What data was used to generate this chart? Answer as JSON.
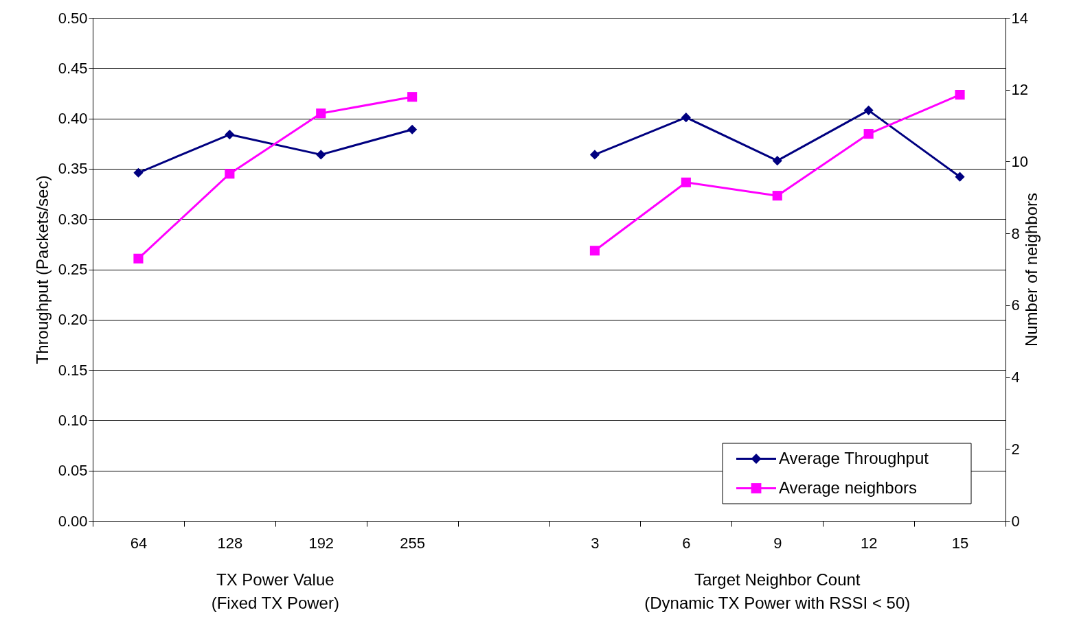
{
  "chart_data": {
    "type": "line",
    "categories": [
      "64",
      "128",
      "192",
      "255",
      null,
      "3",
      "6",
      "9",
      "12",
      "15"
    ],
    "xlabel": "TX Power Value\n(Fixed TX Power)",
    "annotations": [
      "Target Neighbor Count\n(Dynamic TX Power with RSSI < 50)"
    ],
    "ylabel": "Throughput (Packets/sec)",
    "y2label": "Number of neighbors",
    "ylim": [
      0,
      0.5
    ],
    "yticks": [
      {
        "value": 0,
        "label": "0.00"
      },
      {
        "value": 0.05,
        "label": "0.05"
      },
      {
        "value": 0.1,
        "label": "0.10"
      },
      {
        "value": 0.15,
        "label": "0.15"
      },
      {
        "value": 0.2,
        "label": "0.20"
      },
      {
        "value": 0.25,
        "label": "0.25"
      },
      {
        "value": 0.3,
        "label": "0.30"
      },
      {
        "value": 0.35,
        "label": "0.35"
      },
      {
        "value": 0.4,
        "label": "0.40"
      },
      {
        "value": 0.45,
        "label": "0.45"
      },
      {
        "value": 0.5,
        "label": "0.50"
      }
    ],
    "y2lim": [
      0,
      14
    ],
    "y2ticks": [
      0,
      2,
      4,
      6,
      8,
      10,
      12,
      14
    ],
    "grid": "y",
    "legend": "bottom right",
    "series": [
      {
        "name": "Average Throughput",
        "color": "#000080",
        "marker": "diamond",
        "values": [
          0.346,
          0.384,
          0.364,
          0.389,
          null,
          0.364,
          0.401,
          0.358,
          0.408,
          0.342
        ]
      },
      {
        "name": "Average neighbors",
        "color": "#ff00ff",
        "marker": "square",
        "axis": "y2",
        "values": [
          7.3,
          9.66,
          11.34,
          11.8,
          null,
          7.52,
          9.42,
          9.05,
          10.77,
          11.86
        ]
      }
    ]
  }
}
